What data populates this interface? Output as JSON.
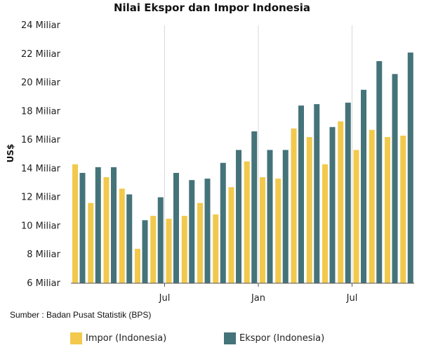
{
  "colors": {
    "impor": "#f2c94c",
    "ekspor": "#45737a",
    "grid": "#d8d8d8",
    "axis": "#555555"
  },
  "chart_data": {
    "type": "bar",
    "title": "Nilai Ekspor dan Impor Indonesia",
    "ylabel": "US$",
    "xlabel": "",
    "ylim": [
      6,
      24
    ],
    "yticks": [
      6,
      8,
      10,
      12,
      14,
      16,
      18,
      20,
      22,
      24
    ],
    "ytick_labels": [
      "6 Miliar",
      "8 Miliar",
      "10 Miliar",
      "12 Miliar",
      "14 Miliar",
      "16 Miliar",
      "18 Miliar",
      "20 Miliar",
      "22 Miliar",
      "24 Miliar"
    ],
    "x_ticks": [
      {
        "label": "Jul",
        "index": 6
      },
      {
        "label": "Jan",
        "index": 12
      },
      {
        "label": "Jul",
        "index": 18
      }
    ],
    "gridlines": "vertical-at-x-ticks",
    "legend_position": "bottom",
    "series": [
      {
        "name": "Impor (Indonesia)",
        "color": "#f2c94c",
        "values": [
          14.3,
          11.6,
          13.4,
          12.6,
          8.4,
          10.7,
          10.5,
          10.7,
          11.6,
          10.8,
          12.7,
          14.5,
          13.4,
          13.3,
          16.8,
          16.2,
          14.3,
          17.3,
          15.3,
          16.7,
          16.2,
          16.3
        ]
      },
      {
        "name": "Ekspor (Indonesia)",
        "color": "#45737a",
        "values": [
          13.7,
          14.1,
          14.1,
          12.2,
          10.4,
          12.0,
          13.7,
          13.2,
          13.3,
          14.4,
          15.3,
          16.6,
          15.3,
          15.3,
          18.4,
          18.5,
          16.9,
          18.6,
          19.5,
          21.5,
          20.6,
          22.1
        ]
      }
    ]
  },
  "source": "Sumber : Badan Pusat Statistik (BPS)"
}
